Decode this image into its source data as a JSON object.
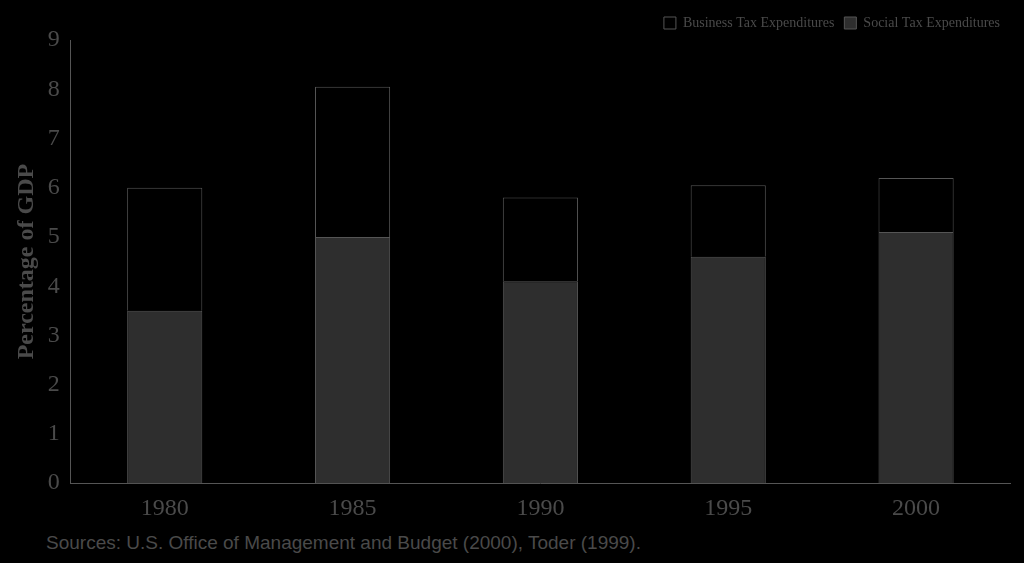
{
  "chart_data": {
    "type": "bar",
    "stacked": true,
    "y_label": "Percentage of GDP",
    "annotations": [
      "Sources: U.S. Office of Management and Budget (2000), Toder (1999)."
    ],
    "categories": [
      "1980",
      "1985",
      "1990",
      "1995",
      "2000"
    ],
    "series": [
      {
        "name": "Social Tax Expenditures",
        "color": "#2e2e2e",
        "values": [
          3.5,
          5.0,
          4.1,
          4.6,
          5.1
        ]
      },
      {
        "name": "Business Tax Expenditures",
        "color": "#000000",
        "values": [
          2.5,
          3.05,
          1.7,
          1.45,
          1.1
        ]
      }
    ],
    "ylim": [
      0,
      9
    ],
    "yticks": [
      0,
      1,
      2,
      3,
      4,
      5,
      6,
      7,
      8,
      9
    ],
    "grid": false,
    "legend": "top-right"
  }
}
